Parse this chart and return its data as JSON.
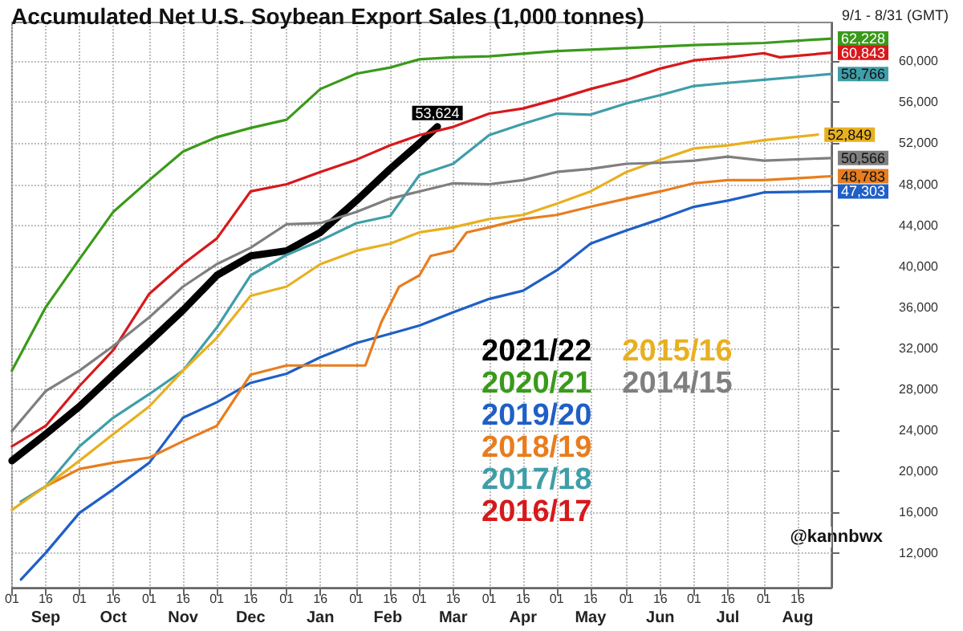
{
  "chart_data": {
    "type": "line",
    "title": "Accumulated Net U.S. Soybean Export Sales (1,000 tonnes)",
    "subtitle": "9/1 - 8/31 (GMT)",
    "annotations": [
      "@kannbwx"
    ],
    "xlim": [
      "2021-09-01",
      "2022-08-31"
    ],
    "xticks": [
      {
        "value": "2021-09-01",
        "label": "01"
      },
      {
        "value": "2021-09-16",
        "label": "16"
      },
      {
        "value": "2021-10-01",
        "label": "01"
      },
      {
        "value": "2021-10-16",
        "label": "16"
      },
      {
        "value": "2021-11-01",
        "label": "01"
      },
      {
        "value": "2021-11-16",
        "label": "16"
      },
      {
        "value": "2021-12-01",
        "label": "01"
      },
      {
        "value": "2021-12-16",
        "label": "16"
      },
      {
        "value": "2022-01-01",
        "label": "01"
      },
      {
        "value": "2022-01-16",
        "label": "16"
      },
      {
        "value": "2022-02-01",
        "label": "01"
      },
      {
        "value": "2022-02-16",
        "label": "16"
      },
      {
        "value": "2022-03-01",
        "label": "01"
      },
      {
        "value": "2022-03-16",
        "label": "16"
      },
      {
        "value": "2022-04-01",
        "label": "01"
      },
      {
        "value": "2022-04-16",
        "label": "16"
      },
      {
        "value": "2022-05-01",
        "label": "01"
      },
      {
        "value": "2022-05-16",
        "label": "16"
      },
      {
        "value": "2022-06-01",
        "label": "01"
      },
      {
        "value": "2022-06-16",
        "label": "16"
      },
      {
        "value": "2022-07-01",
        "label": "01"
      },
      {
        "value": "2022-07-16",
        "label": "16"
      },
      {
        "value": "2022-08-01",
        "label": "01"
      },
      {
        "value": "2022-08-16",
        "label": "16"
      }
    ],
    "x2lim": [
      "2021-09-01",
      "2022-08-31"
    ],
    "x2ticks": [
      {
        "value": "2021-09-16",
        "label": "Sep"
      },
      {
        "value": "2021-10-16",
        "label": "Oct"
      },
      {
        "value": "2021-11-16",
        "label": "Nov"
      },
      {
        "value": "2021-12-16",
        "label": "Dec"
      },
      {
        "value": "2022-01-16",
        "label": "Jan"
      },
      {
        "value": "2022-02-15",
        "label": "Feb"
      },
      {
        "value": "2022-03-16",
        "label": "Mar"
      },
      {
        "value": "2022-04-16",
        "label": "Apr"
      },
      {
        "value": "2022-05-16",
        "label": "May"
      },
      {
        "value": "2022-06-16",
        "label": "Jun"
      },
      {
        "value": "2022-07-16",
        "label": "Jul"
      },
      {
        "value": "2022-08-16",
        "label": "Aug"
      }
    ],
    "ylim": [
      8600,
      63800
    ],
    "yticks": [
      {
        "value": 12000,
        "label": "12,000"
      },
      {
        "value": 16000,
        "label": "16,000"
      },
      {
        "value": 20000,
        "label": "20,000"
      },
      {
        "value": 24000,
        "label": "24,000"
      },
      {
        "value": 28000,
        "label": "28,000"
      },
      {
        "value": 32000,
        "label": "32,000"
      },
      {
        "value": 36000,
        "label": "36,000"
      },
      {
        "value": 40000,
        "label": "40,000"
      },
      {
        "value": 44000,
        "label": "44,000"
      },
      {
        "value": 48000,
        "label": "48,000"
      },
      {
        "value": 52000,
        "label": "52,000"
      },
      {
        "value": 56000,
        "label": "56,000"
      },
      {
        "value": 60000,
        "label": "60,000"
      }
    ],
    "grid": true,
    "legend": "bottom",
    "marker": "none",
    "line_style": "solid",
    "series": [
      {
        "name": "2021/22",
        "color": "#000000",
        "x": [
          "2021-09-01",
          "2021-09-16",
          "2021-10-01",
          "2021-10-16",
          "2021-11-01",
          "2021-11-16",
          "2021-12-01",
          "2021-12-16",
          "2022-01-01",
          "2022-01-16",
          "2022-02-01",
          "2022-02-16",
          "2022-03-01",
          "2022-03-09"
        ],
        "values": [
          21000,
          23600,
          26300,
          29400,
          32600,
          35700,
          39100,
          41000,
          41500,
          43300,
          46400,
          49500,
          52000,
          53624
        ],
        "value_labels": [
          null,
          null,
          null,
          null,
          null,
          null,
          null,
          null,
          null,
          null,
          null,
          null,
          null,
          "53,624"
        ]
      },
      {
        "name": "2020/21",
        "color": "#3a9a1a",
        "x": [
          "2021-09-01",
          "2021-09-16",
          "2021-10-01",
          "2021-10-16",
          "2021-11-01",
          "2021-11-16",
          "2021-12-01",
          "2021-12-16",
          "2022-01-01",
          "2022-01-16",
          "2022-02-01",
          "2022-02-16",
          "2022-03-01",
          "2022-03-16",
          "2022-04-01",
          "2022-05-01",
          "2022-06-01",
          "2022-07-01",
          "2022-08-01",
          "2022-08-31"
        ],
        "values": [
          29800,
          36000,
          40700,
          45300,
          48400,
          51200,
          52600,
          53500,
          54300,
          57300,
          58800,
          59400,
          60200,
          60400,
          60500,
          61000,
          61300,
          61600,
          61800,
          62228
        ],
        "value_labels": [
          null,
          null,
          null,
          null,
          null,
          null,
          null,
          null,
          null,
          null,
          null,
          null,
          null,
          null,
          null,
          null,
          null,
          null,
          null,
          "62,228"
        ]
      },
      {
        "name": "2019/20",
        "color": "#1f5fc6",
        "x": [
          "2021-09-05",
          "2021-09-16",
          "2021-10-01",
          "2021-10-16",
          "2021-11-01",
          "2021-11-16",
          "2021-12-01",
          "2021-12-16",
          "2022-01-01",
          "2022-01-16",
          "2022-02-01",
          "2022-02-16",
          "2022-03-01",
          "2022-03-16",
          "2022-04-01",
          "2022-04-16",
          "2022-05-01",
          "2022-05-16",
          "2022-06-01",
          "2022-06-16",
          "2022-07-01",
          "2022-07-16",
          "2022-08-01",
          "2022-08-31"
        ],
        "values": [
          9400,
          12000,
          15900,
          18200,
          20800,
          25200,
          26700,
          28600,
          29500,
          31100,
          32500,
          33400,
          34200,
          35500,
          36800,
          37600,
          39600,
          42200,
          43500,
          44600,
          45800,
          46400,
          47200,
          47303
        ],
        "value_labels": [
          null,
          null,
          null,
          null,
          null,
          null,
          null,
          null,
          null,
          null,
          null,
          null,
          null,
          null,
          null,
          null,
          null,
          null,
          null,
          null,
          null,
          null,
          null,
          "47,303"
        ]
      },
      {
        "name": "2018/19",
        "color": "#e87d1e",
        "x": [
          "2021-09-05",
          "2021-09-16",
          "2021-10-01",
          "2021-10-16",
          "2021-11-01",
          "2021-11-16",
          "2021-12-01",
          "2021-12-16",
          "2022-01-01",
          "2022-02-05",
          "2022-02-12",
          "2022-02-20",
          "2022-03-01",
          "2022-03-06",
          "2022-03-16",
          "2022-03-22",
          "2022-04-01",
          "2022-04-16",
          "2022-05-01",
          "2022-05-16",
          "2022-06-01",
          "2022-06-16",
          "2022-07-01",
          "2022-07-16",
          "2022-08-01",
          "2022-08-31"
        ],
        "values": [
          17000,
          18500,
          20200,
          20800,
          21300,
          22900,
          24400,
          29400,
          30300,
          30300,
          34500,
          38000,
          39100,
          41000,
          41500,
          43300,
          43800,
          44600,
          45000,
          45800,
          46600,
          47300,
          48100,
          48400,
          48400,
          48783
        ],
        "value_labels": [
          null,
          null,
          null,
          null,
          null,
          null,
          null,
          null,
          null,
          null,
          null,
          null,
          null,
          null,
          null,
          null,
          null,
          null,
          null,
          null,
          null,
          null,
          null,
          null,
          null,
          "48,783"
        ]
      },
      {
        "name": "2017/18",
        "color": "#3f9ea8",
        "x": [
          "2021-09-05",
          "2021-09-16",
          "2021-10-01",
          "2021-10-16",
          "2021-11-01",
          "2021-11-16",
          "2021-12-01",
          "2021-12-16",
          "2022-01-01",
          "2022-01-16",
          "2022-02-01",
          "2022-02-16",
          "2022-03-01",
          "2022-03-16",
          "2022-04-01",
          "2022-04-16",
          "2022-05-01",
          "2022-05-16",
          "2022-06-01",
          "2022-06-16",
          "2022-07-01",
          "2022-07-16",
          "2022-08-01",
          "2022-08-31"
        ],
        "values": [
          17000,
          18500,
          22400,
          25200,
          27500,
          29800,
          34000,
          39100,
          41100,
          42500,
          44200,
          44900,
          48900,
          50000,
          52800,
          53900,
          54900,
          54800,
          55900,
          56700,
          57600,
          57900,
          58200,
          58766
        ],
        "value_labels": [
          null,
          null,
          null,
          null,
          null,
          null,
          null,
          null,
          null,
          null,
          null,
          null,
          null,
          null,
          null,
          null,
          null,
          null,
          null,
          null,
          null,
          null,
          null,
          "58,766"
        ]
      },
      {
        "name": "2016/17",
        "color": "#d7191c",
        "x": [
          "2021-09-01",
          "2021-09-16",
          "2021-10-01",
          "2021-10-16",
          "2021-11-01",
          "2021-11-16",
          "2021-12-01",
          "2021-12-16",
          "2022-01-01",
          "2022-01-16",
          "2022-02-01",
          "2022-02-16",
          "2022-03-01",
          "2022-03-16",
          "2022-04-01",
          "2022-04-16",
          "2022-05-01",
          "2022-05-16",
          "2022-06-01",
          "2022-06-16",
          "2022-07-01",
          "2022-07-16",
          "2022-08-01",
          "2022-08-08",
          "2022-08-31"
        ],
        "values": [
          22400,
          24400,
          28300,
          31800,
          37300,
          40200,
          42700,
          47300,
          48000,
          49200,
          50400,
          51800,
          52800,
          53600,
          54900,
          55400,
          56300,
          57300,
          58200,
          59300,
          60100,
          60400,
          60800,
          60400,
          60843
        ],
        "value_labels": [
          null,
          null,
          null,
          null,
          null,
          null,
          null,
          null,
          null,
          null,
          null,
          null,
          null,
          null,
          null,
          null,
          null,
          null,
          null,
          null,
          null,
          null,
          null,
          null,
          "60,843"
        ]
      },
      {
        "name": "2015/16",
        "color": "#e8b020",
        "x": [
          "2021-09-01",
          "2021-09-16",
          "2021-10-01",
          "2021-10-16",
          "2021-11-01",
          "2021-11-16",
          "2021-12-01",
          "2021-12-16",
          "2022-01-01",
          "2022-01-16",
          "2022-02-01",
          "2022-02-16",
          "2022-03-01",
          "2022-03-16",
          "2022-04-01",
          "2022-04-16",
          "2022-05-01",
          "2022-05-16",
          "2022-06-01",
          "2022-06-16",
          "2022-07-01",
          "2022-07-16",
          "2022-08-01",
          "2022-08-25"
        ],
        "values": [
          16200,
          18500,
          21000,
          23600,
          26300,
          29800,
          33000,
          37100,
          38000,
          40200,
          41500,
          42200,
          43300,
          43800,
          44600,
          45000,
          46100,
          47300,
          49200,
          50400,
          51500,
          51800,
          52300,
          52849
        ],
        "value_labels": [
          null,
          null,
          null,
          null,
          null,
          null,
          null,
          null,
          null,
          null,
          null,
          null,
          null,
          null,
          null,
          null,
          null,
          null,
          null,
          null,
          null,
          null,
          null,
          "52,849"
        ]
      },
      {
        "name": "2014/15",
        "color": "#7f7f7f",
        "x": [
          "2021-09-01",
          "2021-09-16",
          "2021-10-01",
          "2021-10-16",
          "2021-11-01",
          "2021-11-16",
          "2021-12-01",
          "2021-12-16",
          "2022-01-01",
          "2022-01-16",
          "2022-02-01",
          "2022-02-16",
          "2022-03-01",
          "2022-03-16",
          "2022-04-01",
          "2022-04-16",
          "2022-05-01",
          "2022-05-16",
          "2022-06-01",
          "2022-06-16",
          "2022-07-01",
          "2022-07-16",
          "2022-08-01",
          "2022-08-31"
        ],
        "values": [
          23900,
          27800,
          29800,
          32200,
          35000,
          38000,
          40200,
          41800,
          44100,
          44200,
          45300,
          46600,
          47300,
          48100,
          48000,
          48400,
          49200,
          49500,
          50000,
          50100,
          50300,
          50700,
          50300,
          50566
        ],
        "value_labels": [
          null,
          null,
          null,
          null,
          null,
          null,
          null,
          null,
          null,
          null,
          null,
          null,
          null,
          null,
          null,
          null,
          null,
          null,
          null,
          null,
          null,
          null,
          null,
          "50,566"
        ]
      }
    ]
  }
}
